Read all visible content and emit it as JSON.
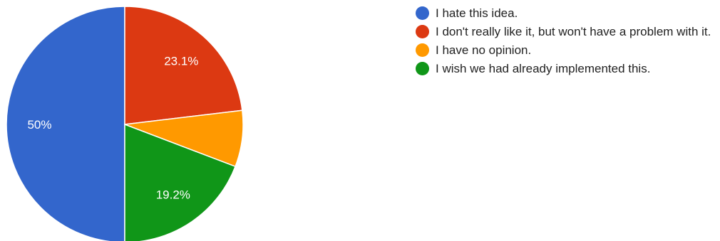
{
  "chart_data": {
    "type": "pie",
    "title": "",
    "slices": [
      {
        "label": "I hate this idea.",
        "value": 50,
        "display": "50%",
        "color": "#3366cc"
      },
      {
        "label": "I don't really like it, but won't have a problem with it.",
        "value": 23.1,
        "display": "23.1%",
        "color": "#dc3912"
      },
      {
        "label": "I have no opinion.",
        "value": 7.7,
        "display": "",
        "color": "#ff9900"
      },
      {
        "label": "I wish we had already implemented this.",
        "value": 19.2,
        "display": "19.2%",
        "color": "#109618"
      }
    ],
    "legend_position": "right"
  }
}
